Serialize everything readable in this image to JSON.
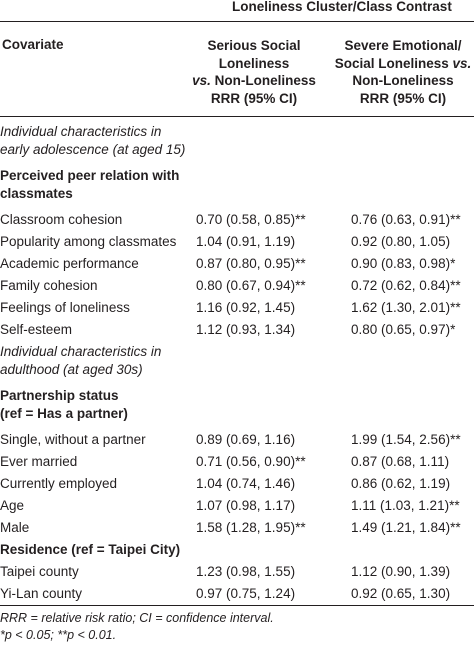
{
  "header": {
    "contrast_title": "Loneliness Cluster/Class Contrast",
    "covariate_label": "Covariate",
    "col1": {
      "line1": "Serious Social",
      "line2": "Loneliness",
      "line3": "vs. Non-Loneliness",
      "line4": "RRR (95% CI)"
    },
    "col2": {
      "line1": "Severe Emotional/",
      "line2": "Social Loneliness vs.",
      "line3": "Non-Loneliness",
      "line4": "RRR (95% CI)"
    }
  },
  "rows": [
    {
      "type": "section-italic",
      "lines": [
        "Individual characteristics in",
        "early adolescence (at aged 15)"
      ]
    },
    {
      "type": "section-bold",
      "lines": [
        "Perceived peer relation with",
        "classmates"
      ]
    },
    {
      "type": "data",
      "label": "Classroom cohesion",
      "v1": "0.70 (0.58, 0.85)**",
      "v2": "0.76 (0.63, 0.91)**"
    },
    {
      "type": "data",
      "label": "Popularity among classmates",
      "v1": "1.04 (0.91, 1.19)",
      "v2": "0.92 (0.80, 1.05)"
    },
    {
      "type": "data",
      "label": "Academic performance",
      "v1": "0.87 (0.80, 0.95)**",
      "v2": "0.90 (0.83, 0.98)*"
    },
    {
      "type": "data",
      "label": "Family cohesion",
      "v1": "0.80 (0.67, 0.94)**",
      "v2": "0.72 (0.62, 0.84)**"
    },
    {
      "type": "data",
      "label": "Feelings of loneliness",
      "v1": "1.16 (0.92, 1.45)",
      "v2": "1.62 (1.30, 2.01)**"
    },
    {
      "type": "data",
      "label": "Self-esteem",
      "v1": "1.12 (0.93, 1.34)",
      "v2": "0.80 (0.65, 0.97)*"
    },
    {
      "type": "section-italic",
      "lines": [
        "Individual characteristics in",
        "adulthood (at aged 30s)"
      ]
    },
    {
      "type": "section-bold",
      "lines": [
        "Partnership status",
        "(ref = Has a partner)"
      ]
    },
    {
      "type": "data",
      "label": "Single, without a partner",
      "v1": "0.89 (0.69, 1.16)",
      "v2": "1.99 (1.54, 2.56)**"
    },
    {
      "type": "data",
      "label": "Ever married",
      "v1": "0.71 (0.56, 0.90)**",
      "v2": "0.87 (0.68, 1.11)"
    },
    {
      "type": "data",
      "label": "Currently employed",
      "v1": "1.04 (0.74, 1.46)",
      "v2": "0.86 (0.62, 1.19)"
    },
    {
      "type": "data",
      "label": "Age",
      "v1": "1.07 (0.98, 1.17)",
      "v2": "1.11 (1.03, 1.21)**"
    },
    {
      "type": "data",
      "label": "Male",
      "v1": "1.58 (1.28, 1.95)**",
      "v2": "1.49 (1.21, 1.84)**"
    },
    {
      "type": "section-bold",
      "lines": [
        "Residence (ref = Taipei City)"
      ]
    },
    {
      "type": "data",
      "label": "Taipei county",
      "v1": "1.23 (0.98, 1.55)",
      "v2": "1.12 (0.90, 1.39)"
    },
    {
      "type": "data",
      "label": "Yi-Lan county",
      "v1": "0.97 (0.75, 1.24)",
      "v2": "0.92 (0.65, 1.30)"
    }
  ],
  "footnote": {
    "line1": "RRR = relative risk ratio; CI = confidence interval.",
    "line2": "*p < 0.05; **p < 0.01."
  }
}
